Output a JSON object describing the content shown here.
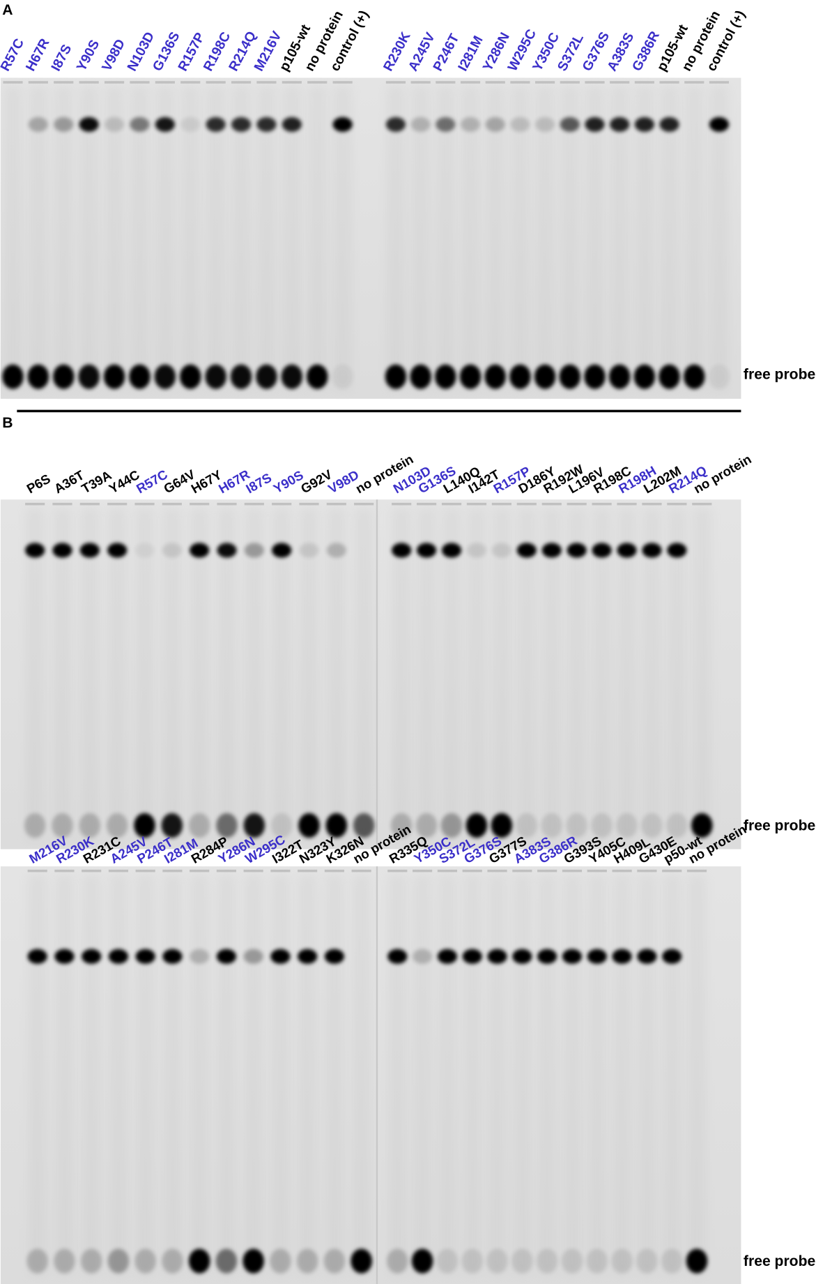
{
  "panels": [
    {
      "label": "A",
      "gels": [
        {
          "free_probe_label": "free probe",
          "halves": [
            {
              "lanes": [
                {
                  "label": "R57C",
                  "color": "#3b2fc9"
                },
                {
                  "label": "H67R",
                  "color": "#3b2fc9"
                },
                {
                  "label": "I87S",
                  "color": "#3b2fc9"
                },
                {
                  "label": "Y90S",
                  "color": "#3b2fc9"
                },
                {
                  "label": "V98D",
                  "color": "#3b2fc9"
                },
                {
                  "label": "N103D",
                  "color": "#3b2fc9"
                },
                {
                  "label": "G136S",
                  "color": "#3b2fc9"
                },
                {
                  "label": "R157P",
                  "color": "#3b2fc9"
                },
                {
                  "label": "R198C",
                  "color": "#3b2fc9"
                },
                {
                  "label": "R214Q",
                  "color": "#3b2fc9"
                },
                {
                  "label": "M216V",
                  "color": "#3b2fc9"
                },
                {
                  "label": "p105-wt",
                  "color": "#000000"
                },
                {
                  "label": "no protein",
                  "color": "#000000"
                },
                {
                  "label": "control (+)",
                  "color": "#000000"
                }
              ]
            },
            {
              "lanes": [
                {
                  "label": "R230K",
                  "color": "#3b2fc9"
                },
                {
                  "label": "A245V",
                  "color": "#3b2fc9"
                },
                {
                  "label": "P246T",
                  "color": "#3b2fc9"
                },
                {
                  "label": "I281M",
                  "color": "#3b2fc9"
                },
                {
                  "label": "Y286N",
                  "color": "#3b2fc9"
                },
                {
                  "label": "W295C",
                  "color": "#3b2fc9"
                },
                {
                  "label": "Y350C",
                  "color": "#3b2fc9"
                },
                {
                  "label": "S372L",
                  "color": "#3b2fc9"
                },
                {
                  "label": "G376S",
                  "color": "#3b2fc9"
                },
                {
                  "label": "A383S",
                  "color": "#3b2fc9"
                },
                {
                  "label": "G386R",
                  "color": "#3b2fc9"
                },
                {
                  "label": "p105-wt",
                  "color": "#000000"
                },
                {
                  "label": "no protein",
                  "color": "#000000"
                },
                {
                  "label": "control (+)",
                  "color": "#000000"
                }
              ]
            }
          ]
        }
      ]
    },
    {
      "label": "B",
      "gels": [
        {
          "free_probe_label": "free probe",
          "halves": [
            {
              "lanes": [
                {
                  "label": "P6S",
                  "color": "#000000"
                },
                {
                  "label": "A36T",
                  "color": "#000000"
                },
                {
                  "label": "T39A",
                  "color": "#000000"
                },
                {
                  "label": "Y44C",
                  "color": "#000000"
                },
                {
                  "label": "R57C",
                  "color": "#3b2fc9"
                },
                {
                  "label": "G64V",
                  "color": "#000000"
                },
                {
                  "label": "H67Y",
                  "color": "#000000"
                },
                {
                  "label": "H67R",
                  "color": "#3b2fc9"
                },
                {
                  "label": "I87S",
                  "color": "#3b2fc9"
                },
                {
                  "label": "Y90S",
                  "color": "#3b2fc9"
                },
                {
                  "label": "G92V",
                  "color": "#000000"
                },
                {
                  "label": "V98D",
                  "color": "#3b2fc9"
                },
                {
                  "label": "no protein",
                  "color": "#000000"
                }
              ]
            },
            {
              "lanes": [
                {
                  "label": "N103D",
                  "color": "#3b2fc9"
                },
                {
                  "label": "G136S",
                  "color": "#3b2fc9"
                },
                {
                  "label": "L140Q",
                  "color": "#000000"
                },
                {
                  "label": "I142T",
                  "color": "#000000"
                },
                {
                  "label": "R157P",
                  "color": "#3b2fc9"
                },
                {
                  "label": "D186Y",
                  "color": "#000000"
                },
                {
                  "label": "R192W",
                  "color": "#000000"
                },
                {
                  "label": "L196V",
                  "color": "#000000"
                },
                {
                  "label": "R198C",
                  "color": "#000000"
                },
                {
                  "label": "R198H",
                  "color": "#3b2fc9"
                },
                {
                  "label": "L202M",
                  "color": "#000000"
                },
                {
                  "label": "R214Q",
                  "color": "#3b2fc9"
                },
                {
                  "label": "no protein",
                  "color": "#000000"
                }
              ]
            }
          ]
        },
        {
          "free_probe_label": "free probe",
          "halves": [
            {
              "lanes": [
                {
                  "label": "M216V",
                  "color": "#3b2fc9"
                },
                {
                  "label": "R230K",
                  "color": "#3b2fc9"
                },
                {
                  "label": "R231C",
                  "color": "#000000"
                },
                {
                  "label": "A245V",
                  "color": "#3b2fc9"
                },
                {
                  "label": "P246T",
                  "color": "#3b2fc9"
                },
                {
                  "label": "I281M",
                  "color": "#3b2fc9"
                },
                {
                  "label": "R284P",
                  "color": "#000000"
                },
                {
                  "label": "Y286N",
                  "color": "#3b2fc9"
                },
                {
                  "label": "W295C",
                  "color": "#3b2fc9"
                },
                {
                  "label": "I322T",
                  "color": "#000000"
                },
                {
                  "label": "N323Y",
                  "color": "#000000"
                },
                {
                  "label": "K326N",
                  "color": "#000000"
                },
                {
                  "label": "no protein",
                  "color": "#000000"
                }
              ]
            },
            {
              "lanes": [
                {
                  "label": "R335Q",
                  "color": "#000000"
                },
                {
                  "label": "Y350C",
                  "color": "#3b2fc9"
                },
                {
                  "label": "S372L",
                  "color": "#3b2fc9"
                },
                {
                  "label": "G376S",
                  "color": "#3b2fc9"
                },
                {
                  "label": "G377S",
                  "color": "#000000"
                },
                {
                  "label": "A383S",
                  "color": "#3b2fc9"
                },
                {
                  "label": "G386R",
                  "color": "#3b2fc9"
                },
                {
                  "label": "G393S",
                  "color": "#000000"
                },
                {
                  "label": "Y405C",
                  "color": "#000000"
                },
                {
                  "label": "H409L",
                  "color": "#000000"
                },
                {
                  "label": "G430E",
                  "color": "#000000"
                },
                {
                  "label": "p50-wt",
                  "color": "#000000"
                },
                {
                  "label": "no protein",
                  "color": "#000000"
                }
              ]
            }
          ]
        }
      ]
    }
  ]
}
